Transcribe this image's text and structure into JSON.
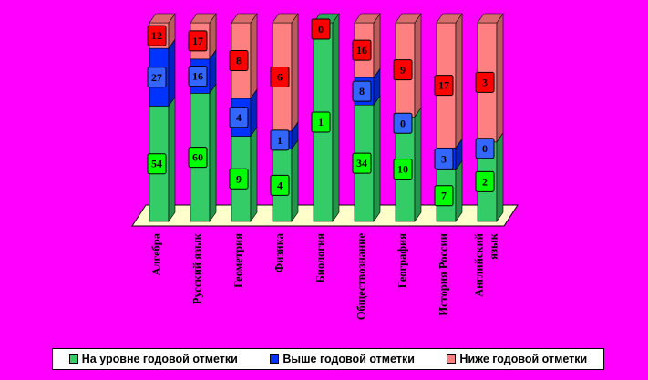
{
  "chart_data": {
    "type": "bar",
    "stacked": true,
    "three_d": true,
    "categories": [
      "Алгебра",
      "Русский язык",
      "Геометрия",
      "Физика",
      "Биология",
      "Обществознание",
      "География",
      "История России",
      "Английский язык"
    ],
    "series": [
      {
        "name": "На уровне годовой отметки",
        "values": [
          54,
          60,
          9,
          4,
          1,
          34,
          10,
          7,
          2
        ],
        "color": "#33cc66",
        "label_bg": "#00ff00"
      },
      {
        "name": "Выше годовой отметки",
        "values": [
          27,
          16,
          4,
          1,
          0,
          8,
          0,
          3,
          0
        ],
        "color": "#0033ff",
        "label_bg": "#3366ff"
      },
      {
        "name": "Ниже годовой отметки",
        "values": [
          12,
          17,
          8,
          6,
          0,
          16,
          9,
          17,
          3
        ],
        "color": "#ff8080",
        "label_bg": "#ff0000"
      }
    ],
    "legend_position": "bottom",
    "percent_stacked": true
  },
  "colors": {
    "background": "#ff00ff",
    "floor": "#ffffcc"
  }
}
